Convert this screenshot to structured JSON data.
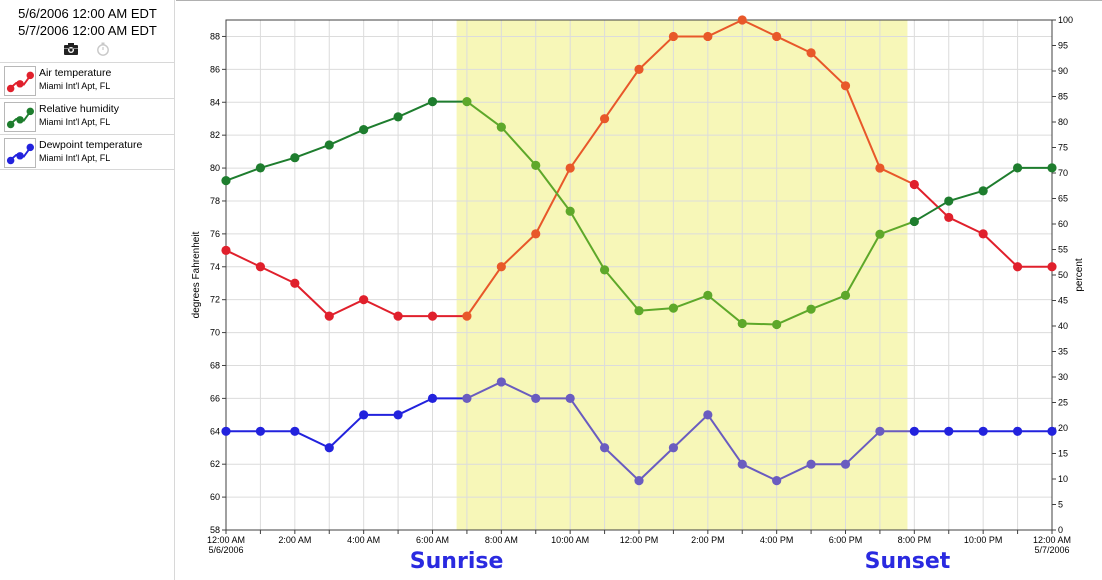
{
  "sidebar": {
    "range_start": "5/6/2006 12:00 AM EDT",
    "range_end": "5/7/2006 12:00 AM EDT",
    "icons": [
      "camera-icon",
      "clock-icon"
    ],
    "legend": [
      {
        "name": "Air temperature",
        "station": "Miami Int'l Apt, FL",
        "color": "#e0202c"
      },
      {
        "name": "Relative humidity",
        "station": "Miami Int'l Apt, FL",
        "color": "#1e7d2e"
      },
      {
        "name": "Dewpoint temperature",
        "station": "Miami Int'l Apt, FL",
        "color": "#2222dd"
      }
    ]
  },
  "chart_data": {
    "type": "line",
    "title": "",
    "ylabel_left": "degrees Fahrenheit",
    "ylabel_right": "percent",
    "ylim_left": [
      58,
      89
    ],
    "yticks_left": [
      58,
      60,
      62,
      64,
      66,
      68,
      70,
      72,
      74,
      76,
      78,
      80,
      82,
      84,
      86,
      88
    ],
    "ylim_right": [
      0,
      100
    ],
    "yticks_right": [
      0,
      5,
      10,
      15,
      20,
      25,
      30,
      35,
      40,
      45,
      50,
      55,
      60,
      65,
      70,
      75,
      80,
      85,
      90,
      95,
      100
    ],
    "x_hours": [
      0,
      1,
      2,
      3,
      4,
      5,
      6,
      7,
      8,
      9,
      10,
      11,
      12,
      13,
      14,
      15,
      16,
      17,
      18,
      19,
      20,
      21,
      22,
      23,
      24
    ],
    "xtick_hours": [
      0,
      2,
      4,
      6,
      8,
      10,
      12,
      14,
      16,
      18,
      20,
      22,
      24
    ],
    "xtick_labels": [
      [
        "12:00 AM",
        "5/6/2006"
      ],
      [
        "2:00 AM",
        ""
      ],
      [
        "4:00 AM",
        ""
      ],
      [
        "6:00 AM",
        ""
      ],
      [
        "8:00 AM",
        ""
      ],
      [
        "10:00 AM",
        ""
      ],
      [
        "12:00 PM",
        ""
      ],
      [
        "2:00 PM",
        ""
      ],
      [
        "4:00 PM",
        ""
      ],
      [
        "6:00 PM",
        ""
      ],
      [
        "8:00 PM",
        ""
      ],
      [
        "10:00 PM",
        ""
      ],
      [
        "12:00 AM",
        "5/7/2006"
      ]
    ],
    "grid": true,
    "daylight_band": {
      "start_hour": 6.7,
      "end_hour": 19.8,
      "color": "#f7f7b8"
    },
    "annotations": [
      {
        "text": "Sunrise",
        "hour": 6.7
      },
      {
        "text": "Sunset",
        "hour": 19.8
      }
    ],
    "series": [
      {
        "name": "Air temperature",
        "axis": "left",
        "color_night": "#e0202c",
        "color_day": "#e8582a",
        "values": [
          75,
          74,
          73,
          71,
          72,
          71,
          71,
          71,
          74,
          76,
          80,
          83,
          86,
          88,
          88,
          89,
          88,
          87,
          85,
          80,
          79,
          77,
          76,
          74,
          74
        ]
      },
      {
        "name": "Relative humidity",
        "axis": "right",
        "color_night": "#1e7d2e",
        "color_day": "#5ea82a",
        "values": [
          68.5,
          71,
          73,
          75.5,
          78.5,
          81,
          84,
          84,
          79,
          71.5,
          62.5,
          51,
          43,
          43.5,
          46,
          40.5,
          40.3,
          43.3,
          46,
          58,
          60.5,
          64.5,
          66.5,
          71,
          71
        ]
      },
      {
        "name": "Dewpoint temperature",
        "axis": "left",
        "color_night": "#2222dd",
        "color_day": "#6a5cc0",
        "values": [
          64,
          64,
          64,
          63,
          65,
          65,
          66,
          66,
          67,
          66,
          66,
          63,
          61,
          63,
          65,
          62,
          61,
          62,
          62,
          64,
          64,
          64,
          64,
          64,
          64
        ]
      }
    ]
  }
}
